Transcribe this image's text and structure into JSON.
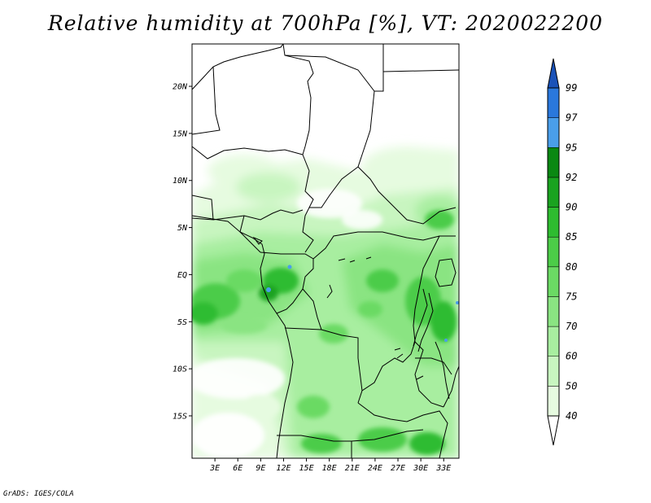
{
  "map": {
    "title": "Relative humidity at 700hPa [%], VT: 2020022200",
    "credit": "GrADS: IGES/COLA",
    "lat_ticks": [
      "20N",
      "15N",
      "10N",
      "5N",
      "EQ",
      "5S",
      "10S",
      "15S"
    ],
    "lon_ticks": [
      "3E",
      "6E",
      "9E",
      "12E",
      "15E",
      "18E",
      "21E",
      "24E",
      "27E",
      "30E",
      "33E"
    ],
    "extent": {
      "lon_min": 0,
      "lon_max": 35,
      "lat_min": -19.5,
      "lat_max": 24.5
    }
  },
  "colorbar": {
    "labels": [
      "40",
      "50",
      "60",
      "70",
      "75",
      "80",
      "85",
      "90",
      "92",
      "95",
      "97",
      "99"
    ],
    "colors": [
      "#ffffff",
      "#e6fbe0",
      "#c8f5c0",
      "#a8eea0",
      "#8ae482",
      "#6bda64",
      "#4ccc48",
      "#2ebc30",
      "#1aa320",
      "#0a8812",
      "#4a9eea",
      "#2a78dc",
      "#1a52b8"
    ]
  }
}
